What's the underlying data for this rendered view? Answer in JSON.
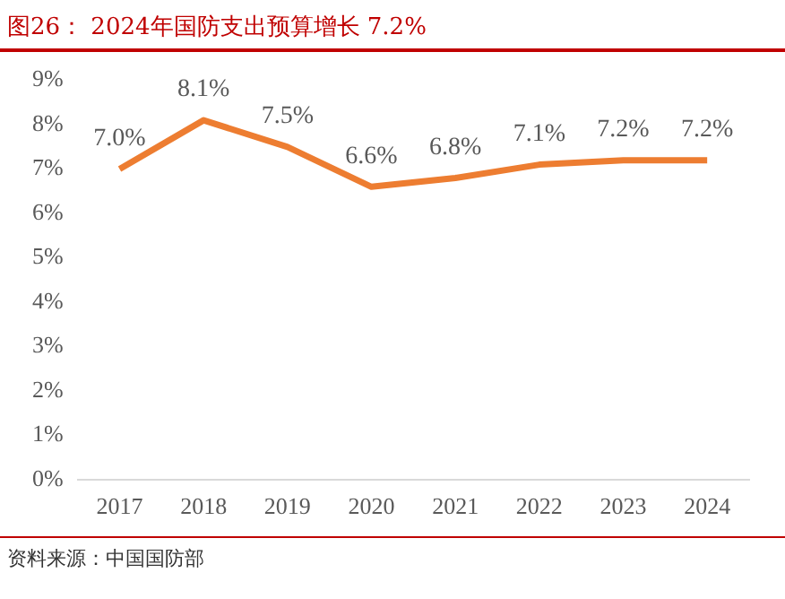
{
  "chart_data": {
    "type": "line",
    "title": "图26： 2024年国防支出预算增长 7.2%",
    "annotations": [
      "资料来源：中国国防部"
    ],
    "categories": [
      "2017",
      "2018",
      "2019",
      "2020",
      "2021",
      "2022",
      "2023",
      "2024"
    ],
    "series": [
      {
        "color": "#ed7d31",
        "values": [
          7.0,
          8.1,
          7.5,
          6.6,
          6.8,
          7.1,
          7.2,
          7.2
        ],
        "value_labels": [
          "7.0%",
          "8.1%",
          "7.5%",
          "6.6%",
          "6.8%",
          "7.1%",
          "7.2%",
          "7.2%"
        ]
      }
    ],
    "ylim": [
      0,
      9
    ],
    "yticks": [
      {
        "value": 0,
        "label": "0%"
      },
      {
        "value": 1,
        "label": "1%"
      },
      {
        "value": 2,
        "label": "2%"
      },
      {
        "value": 3,
        "label": "3%"
      },
      {
        "value": 4,
        "label": "4%"
      },
      {
        "value": 5,
        "label": "5%"
      },
      {
        "value": 6,
        "label": "6%"
      },
      {
        "value": 7,
        "label": "7%"
      },
      {
        "value": 8,
        "label": "8%"
      },
      {
        "value": 9,
        "label": "9%"
      }
    ],
    "grid": false,
    "legend": false,
    "marker": "none",
    "line_style": "solid"
  }
}
